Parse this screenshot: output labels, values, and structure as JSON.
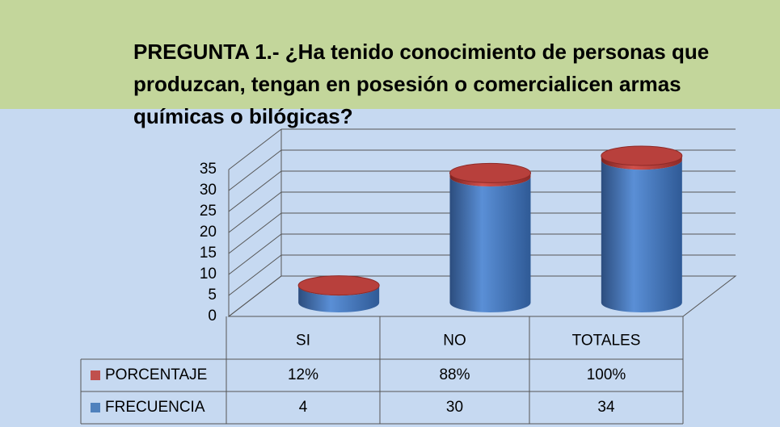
{
  "chart_data": {
    "type": "cylinder",
    "title": "PREGUNTA 1.- ¿Ha tenido conocimiento de personas que produzcan, tengan en posesión o comercialicen armas químicas o bilógicas?",
    "categories": [
      "SI",
      "NO",
      "TOTALES"
    ],
    "series": [
      {
        "name": "PORCENTAJE",
        "color": "#c0504d",
        "values": [
          0.12,
          0.88,
          1
        ],
        "value_labels": [
          "12%",
          "88%",
          "100%"
        ]
      },
      {
        "name": "FRECUENCIA",
        "color": "#4f81bd",
        "values": [
          4,
          30,
          34
        ]
      }
    ],
    "stacked": true,
    "ylim": [
      0,
      35
    ],
    "yticks": [
      0,
      5,
      10,
      15,
      20,
      25,
      30,
      35
    ],
    "grid": true
  }
}
